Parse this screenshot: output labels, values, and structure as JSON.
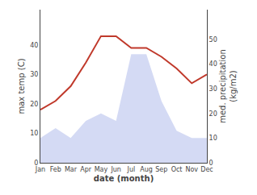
{
  "chart_data": {
    "type": "line",
    "categories": [
      "Jan",
      "Feb",
      "Mar",
      "Apr",
      "May",
      "Jun",
      "Jul",
      "Aug",
      "Sep",
      "Oct",
      "Nov",
      "Dec"
    ],
    "xlabel": "date (month)",
    "ylabel": "max temp (C)",
    "y2label": "med. precipitation\n(kg/m2)",
    "series": [
      {
        "type": "area",
        "axis": "y2",
        "color": "#c5cdf0",
        "values": [
          10,
          14,
          10,
          17,
          20,
          17,
          44,
          44,
          25,
          13,
          10,
          10
        ]
      },
      {
        "type": "line",
        "color": "#c0392b",
        "values": [
          18,
          21,
          26,
          34,
          43,
          43,
          39,
          39,
          36,
          32,
          27,
          30
        ]
      }
    ],
    "ylim": [
      0,
      52
    ],
    "yticks": [
      0,
      10,
      20,
      30,
      40
    ],
    "y2lim": [
      0,
      62
    ],
    "y2ticks": [
      0,
      10,
      20,
      30,
      40,
      50
    ],
    "grid": false
  }
}
